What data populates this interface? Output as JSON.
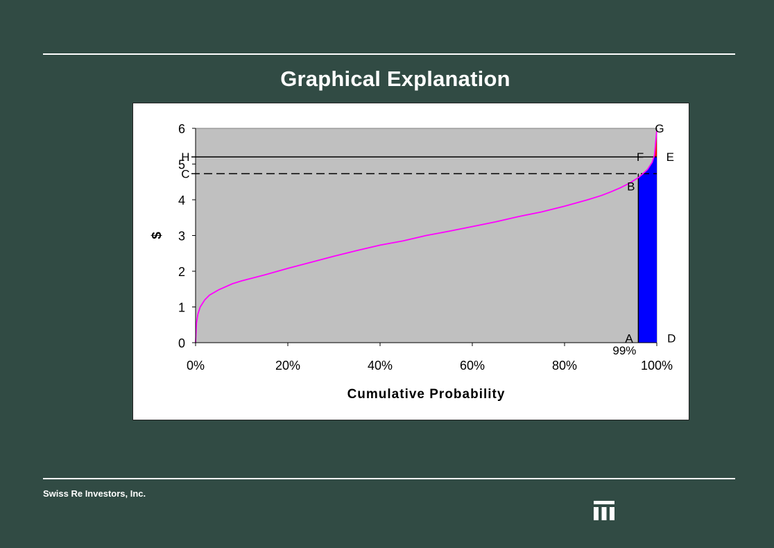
{
  "slide": {
    "title": "Graphical Explanation",
    "footer": "Swiss Re Investors, Inc."
  },
  "chart_data": {
    "type": "line",
    "title": "",
    "xlabel": "Cumulative Probability",
    "ylabel": "$",
    "xlim": [
      0,
      1
    ],
    "ylim": [
      0,
      6
    ],
    "x_ticks": [
      0,
      0.2,
      0.4,
      0.6,
      0.8,
      1.0
    ],
    "x_tick_labels": [
      "0%",
      "20%",
      "40%",
      "60%",
      "80%",
      "100%"
    ],
    "y_ticks": [
      0,
      1,
      2,
      3,
      4,
      5,
      6
    ],
    "y_tick_labels": [
      "0",
      "1",
      "2",
      "3",
      "4",
      "5",
      "6"
    ],
    "grid": false,
    "legend": "none",
    "series": [
      {
        "color": "#ff00ff",
        "x": [
          0,
          0.002,
          0.005,
          0.01,
          0.02,
          0.03,
          0.05,
          0.08,
          0.1,
          0.15,
          0.2,
          0.25,
          0.3,
          0.35,
          0.4,
          0.45,
          0.5,
          0.55,
          0.6,
          0.65,
          0.7,
          0.75,
          0.8,
          0.85,
          0.88,
          0.9,
          0.92,
          0.94,
          0.96,
          0.97,
          0.98,
          0.99,
          0.995,
          1.0
        ],
        "y": [
          0,
          0.55,
          0.8,
          1.0,
          1.2,
          1.33,
          1.48,
          1.65,
          1.73,
          1.9,
          2.08,
          2.25,
          2.42,
          2.58,
          2.73,
          2.85,
          3.0,
          3.12,
          3.25,
          3.38,
          3.53,
          3.66,
          3.82,
          4.0,
          4.12,
          4.22,
          4.33,
          4.46,
          4.62,
          4.73,
          4.85,
          5.05,
          5.25,
          5.95
        ]
      }
    ],
    "reference_lines": [
      {
        "style": "solid",
        "y": 5.2,
        "color": "#000000"
      },
      {
        "style": "dashed",
        "y": 4.73,
        "color": "#000000"
      },
      {
        "style": "solid-vertical",
        "x": 0.96,
        "color": "#000000"
      }
    ],
    "shaded_regions": [
      {
        "color": "#0000ff",
        "x": [
          0.96,
          1.0
        ],
        "y_bottom": 0,
        "y_top": 5.2,
        "description_points": [
          "A",
          "B",
          "F",
          "E",
          "D"
        ]
      },
      {
        "color": "#ff0000",
        "x": [
          0.98,
          1.0
        ],
        "y_bottom": 5.2,
        "y_top": 5.95,
        "description_points": [
          "F",
          "G",
          "E"
        ]
      }
    ],
    "annotations": [
      {
        "text": "G",
        "x": 1.0,
        "y": 6.0
      },
      {
        "text": "H",
        "x": -0.01,
        "y": 5.2
      },
      {
        "text": "F",
        "x": 0.97,
        "y": 5.2
      },
      {
        "text": "E",
        "x": 1.02,
        "y": 5.2
      },
      {
        "text": "C",
        "x": -0.01,
        "y": 4.73
      },
      {
        "text": "B",
        "x": 0.95,
        "y": 4.5
      },
      {
        "text": "A",
        "x": 0.94,
        "y": 0.13
      },
      {
        "text": "D",
        "x": 1.02,
        "y": 0.13
      },
      {
        "text": "99%",
        "x": 0.96,
        "y": -0.33
      }
    ],
    "plot_background": "#c0c0c0"
  }
}
